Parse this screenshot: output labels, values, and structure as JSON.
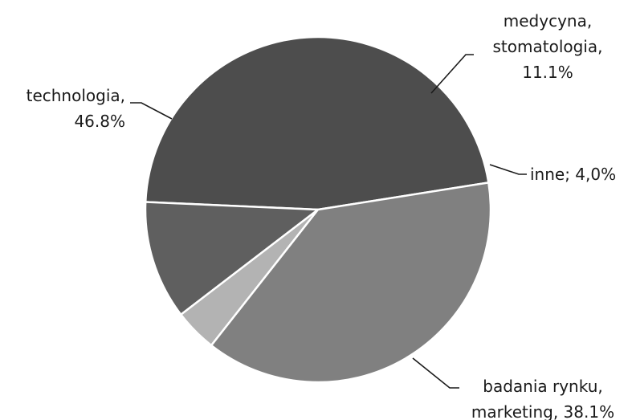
{
  "chart_data": {
    "type": "pie",
    "title": "",
    "slices": [
      {
        "name": "technologia",
        "value": 46.8,
        "label_lines": [
          "technologia,",
          "46.8%"
        ],
        "color": "#4d4d4d"
      },
      {
        "name": "medycyna, stomatologia",
        "value": 11.1,
        "label_lines": [
          "medycyna,",
          "stomatologia,",
          "11.1%"
        ],
        "color": "#5f5f5f"
      },
      {
        "name": "inne",
        "value": 4.0,
        "label_lines": [
          "inne; 4,0%"
        ],
        "color": "#b3b3b3"
      },
      {
        "name": "badania rynku, marketing",
        "value": 38.1,
        "label_lines": [
          "badania rynku,",
          "marketing, 38.1%"
        ],
        "color": "#808080"
      }
    ],
    "legend": "none"
  }
}
